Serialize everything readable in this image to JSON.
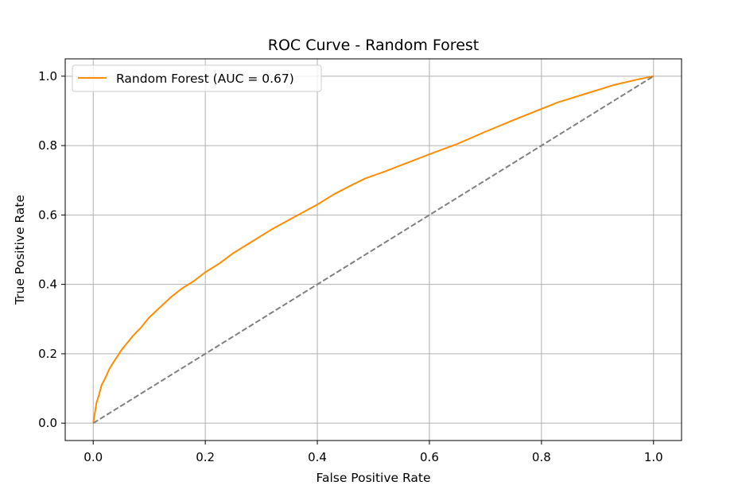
{
  "chart_data": {
    "type": "line",
    "title": "ROC Curve - Random Forest",
    "xlabel": "False Positive Rate",
    "ylabel": "True Positive Rate",
    "xlim": [
      -0.05,
      1.05
    ],
    "ylim": [
      -0.05,
      1.05
    ],
    "xticks": [
      0.0,
      0.2,
      0.4,
      0.6,
      0.8,
      1.0
    ],
    "xtick_labels": [
      "0.0",
      "0.2",
      "0.4",
      "0.6",
      "0.8",
      "1.0"
    ],
    "yticks": [
      0.0,
      0.2,
      0.4,
      0.6,
      0.8,
      1.0
    ],
    "ytick_labels": [
      "0.0",
      "0.2",
      "0.4",
      "0.6",
      "0.8",
      "1.0"
    ],
    "grid": true,
    "legend_position": "top-left",
    "series": [
      {
        "name": "Random Forest (AUC = 0.67)",
        "color": "#ff8c00",
        "style": "solid",
        "x": [
          0.0,
          0.003,
          0.006,
          0.01,
          0.015,
          0.02,
          0.03,
          0.04,
          0.05,
          0.06,
          0.07,
          0.085,
          0.1,
          0.12,
          0.14,
          0.16,
          0.18,
          0.2,
          0.225,
          0.25,
          0.28,
          0.32,
          0.36,
          0.4,
          0.43,
          0.46,
          0.485,
          0.52,
          0.56,
          0.6,
          0.65,
          0.7,
          0.76,
          0.83,
          0.88,
          0.93,
          0.97,
          1.0
        ],
        "y": [
          0.0,
          0.03,
          0.06,
          0.08,
          0.11,
          0.125,
          0.16,
          0.185,
          0.21,
          0.23,
          0.25,
          0.275,
          0.305,
          0.335,
          0.365,
          0.39,
          0.41,
          0.435,
          0.46,
          0.49,
          0.52,
          0.56,
          0.595,
          0.63,
          0.66,
          0.685,
          0.705,
          0.725,
          0.75,
          0.775,
          0.805,
          0.84,
          0.88,
          0.925,
          0.95,
          0.975,
          0.99,
          1.0
        ]
      },
      {
        "color": "#808080",
        "style": "dashed",
        "x": [
          0.0,
          1.0
        ],
        "y": [
          0.0,
          1.0
        ]
      }
    ]
  }
}
